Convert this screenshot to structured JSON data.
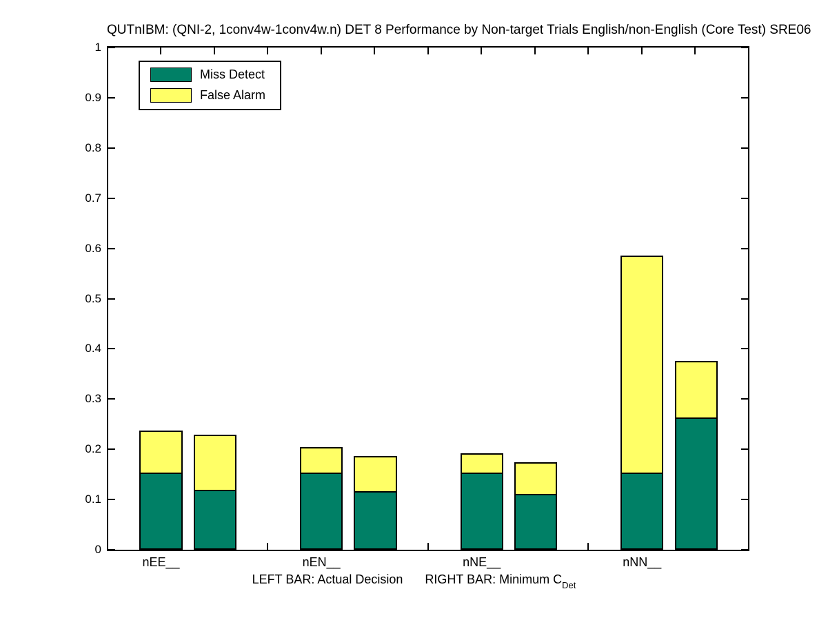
{
  "title": "QUTnIBM: (QNI-2, 1conv4w-1conv4w.n) DET 8 Performance by Non-target Trials English/non-English (Core Test) SRE06",
  "legend": {
    "position": "top-left",
    "entries": [
      {
        "label": "Miss Detect",
        "color": "#008066"
      },
      {
        "label": "False Alarm",
        "color": "#FFFF66"
      }
    ]
  },
  "axes": {
    "ytick_values": [
      0,
      0.1,
      0.2,
      0.3,
      0.4,
      0.5,
      0.6,
      0.7,
      0.8,
      0.9,
      1
    ],
    "ytick_labels": [
      "0",
      "0.1",
      "0.2",
      "0.3",
      "0.4",
      "0.5",
      "0.6",
      "0.7",
      "0.8",
      "0.9",
      "1"
    ],
    "xlabel_left": "LEFT BAR: Actual Decision",
    "xlabel_right": "RIGHT BAR: Minimum C",
    "xlabel_sub": "Det"
  },
  "chart_data": {
    "type": "bar",
    "stacked": true,
    "grouped": true,
    "title": "QUTnIBM: (QNI-2, 1conv4w-1conv4w.n) DET 8 Performance by Non-target Trials English/non-English (Core Test) SRE06",
    "categories": [
      "nEE__",
      "nEN__",
      "nNE__",
      "nNN__"
    ],
    "ylim": [
      0,
      1
    ],
    "grid": false,
    "legend_position": "top-left",
    "colors": {
      "Miss Detect": "#008066",
      "False Alarm": "#FFFF66"
    },
    "series": [
      {
        "name": "Actual Decision (left bar)",
        "stacks": [
          {
            "name": "Miss Detect",
            "values": [
              0.153,
              0.153,
              0.153,
              0.153
            ]
          },
          {
            "name": "False Alarm",
            "values": [
              0.085,
              0.052,
              0.039,
              0.433
            ]
          }
        ],
        "totals": [
          0.238,
          0.205,
          0.192,
          0.586
        ]
      },
      {
        "name": "Minimum CDet (right bar)",
        "stacks": [
          {
            "name": "Miss Detect",
            "values": [
              0.119,
              0.117,
              0.111,
              0.264
            ]
          },
          {
            "name": "False Alarm",
            "values": [
              0.11,
              0.07,
              0.063,
              0.112
            ]
          }
        ],
        "totals": [
          0.229,
          0.187,
          0.174,
          0.376
        ]
      }
    ]
  }
}
